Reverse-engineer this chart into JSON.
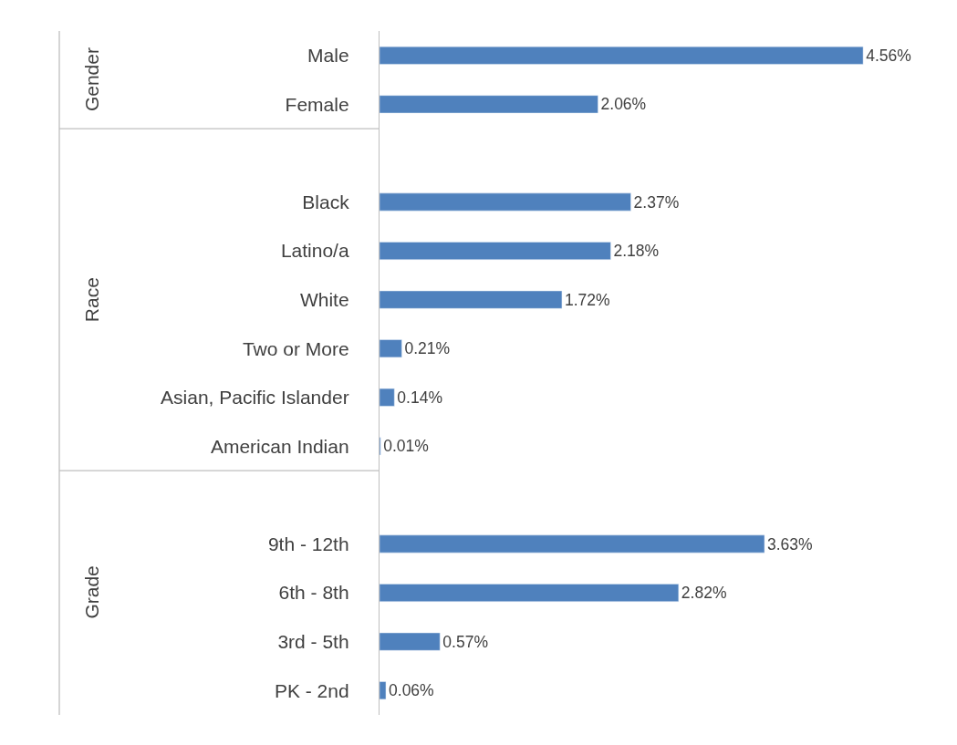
{
  "chart_data": {
    "type": "bar",
    "orientation": "horizontal",
    "categories": [
      "Male",
      "Female",
      null,
      "Black",
      "Latino/a",
      "White",
      "Two or More",
      "Asian, Pacific Islander",
      "American Indian",
      null,
      "9th - 12th",
      "6th - 8th",
      "3rd - 5th",
      "PK - 2nd"
    ],
    "values": [
      4.56,
      2.06,
      null,
      2.37,
      2.18,
      1.72,
      0.21,
      0.14,
      0.01,
      null,
      3.63,
      2.82,
      0.57,
      0.06
    ],
    "value_labels": [
      "4.56%",
      "2.06%",
      null,
      "2.37%",
      "2.18%",
      "1.72%",
      "0.21%",
      "0.14%",
      "0.01%",
      null,
      "3.63%",
      "2.82%",
      "0.57%",
      "0.06%"
    ],
    "color": "#4f81bd",
    "annotations": [
      "Gender",
      "Race",
      "Grade"
    ]
  }
}
